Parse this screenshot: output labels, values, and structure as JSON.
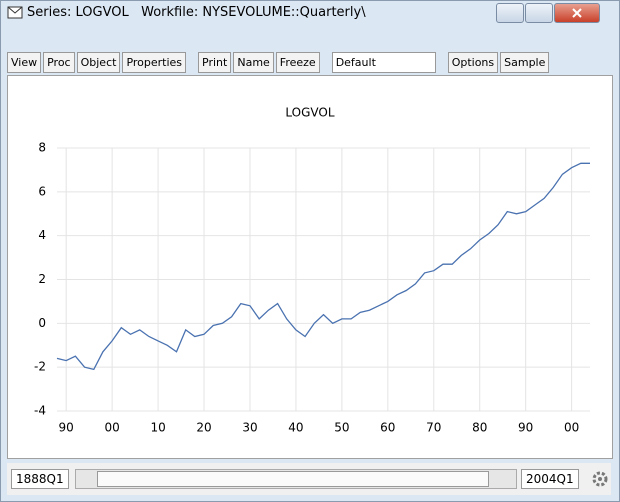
{
  "window": {
    "title": "Series: LOGVOL   Workfile: NYSEVOLUME::Quarterly\\",
    "toolbar": [
      "View",
      "Proc",
      "Object",
      "Properties",
      "Print",
      "Name",
      "Freeze"
    ],
    "dropdown": "Default",
    "toolbar_right": [
      "Options",
      "Sample"
    ],
    "start": "1888Q1",
    "end": "2004Q1"
  },
  "chart_data": {
    "type": "line",
    "title": "LOGVOL",
    "x": [
      1888,
      1890,
      1892,
      1894,
      1896,
      1898,
      1900,
      1902,
      1904,
      1906,
      1908,
      1910,
      1912,
      1914,
      1916,
      1918,
      1920,
      1922,
      1924,
      1926,
      1928,
      1930,
      1932,
      1934,
      1936,
      1938,
      1940,
      1942,
      1944,
      1946,
      1948,
      1950,
      1952,
      1954,
      1956,
      1958,
      1960,
      1962,
      1964,
      1966,
      1968,
      1970,
      1972,
      1974,
      1976,
      1978,
      1980,
      1982,
      1984,
      1986,
      1988,
      1990,
      1992,
      1994,
      1996,
      1998,
      2000,
      2002,
      2004
    ],
    "series": [
      {
        "name": "LOGVOL",
        "color": "#4a72b0",
        "values": [
          -1.6,
          -1.7,
          -1.5,
          -2.0,
          -2.1,
          -1.3,
          -0.8,
          -0.2,
          -0.5,
          -0.3,
          -0.6,
          -0.8,
          -1.0,
          -1.3,
          -0.3,
          -0.6,
          -0.5,
          -0.1,
          0.0,
          0.3,
          0.9,
          0.8,
          0.2,
          0.6,
          0.9,
          0.2,
          -0.3,
          -0.6,
          0.0,
          0.4,
          0.0,
          0.2,
          0.2,
          0.5,
          0.6,
          0.8,
          1.0,
          1.3,
          1.5,
          1.8,
          2.3,
          2.4,
          2.7,
          2.7,
          3.1,
          3.4,
          3.8,
          4.1,
          4.5,
          5.1,
          5.0,
          5.1,
          5.4,
          5.7,
          6.2,
          6.8,
          7.1,
          7.3,
          7.3
        ]
      }
    ],
    "xlim": [
      1888,
      2004
    ],
    "xticks": [
      {
        "value": 1890,
        "label": "90"
      },
      {
        "value": 1900,
        "label": "00"
      },
      {
        "value": 1910,
        "label": "10"
      },
      {
        "value": 1920,
        "label": "20"
      },
      {
        "value": 1930,
        "label": "30"
      },
      {
        "value": 1940,
        "label": "40"
      },
      {
        "value": 1950,
        "label": "50"
      },
      {
        "value": 1960,
        "label": "60"
      },
      {
        "value": 1970,
        "label": "70"
      },
      {
        "value": 1980,
        "label": "80"
      },
      {
        "value": 1990,
        "label": "90"
      },
      {
        "value": 2000,
        "label": "00"
      }
    ],
    "ylim": [
      -4,
      8
    ],
    "yticks": [
      -4,
      -2,
      0,
      2,
      4,
      6,
      8
    ],
    "grid": true
  }
}
